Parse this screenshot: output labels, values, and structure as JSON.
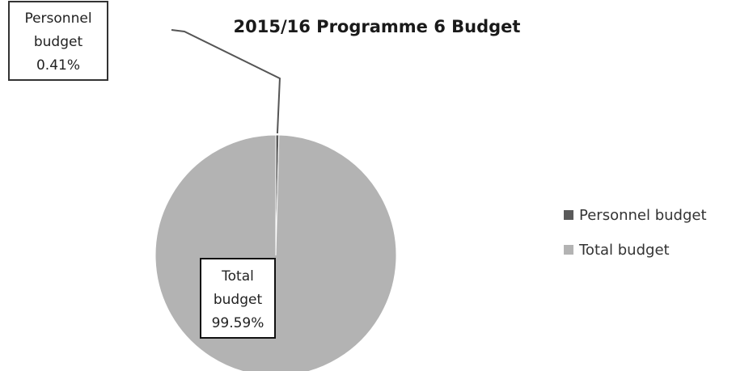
{
  "chart_data": {
    "type": "pie",
    "title": "2015/16 Programme 6 Budget",
    "categories": [
      "Personnel budget",
      "Total budget"
    ],
    "values": [
      0.41,
      99.59
    ],
    "unit": "%",
    "data_labels": [
      {
        "category": "Personnel budget",
        "lines": [
          "Personnel",
          "budget",
          "0.41%"
        ]
      },
      {
        "category": "Total budget",
        "lines": [
          "Total",
          "budget",
          "99.59%"
        ]
      }
    ],
    "colors": [
      "#5a5a5a",
      "#b3b3b3"
    ],
    "legend": {
      "placement": "right",
      "entries": [
        "Personnel budget",
        "Total budget"
      ]
    }
  }
}
